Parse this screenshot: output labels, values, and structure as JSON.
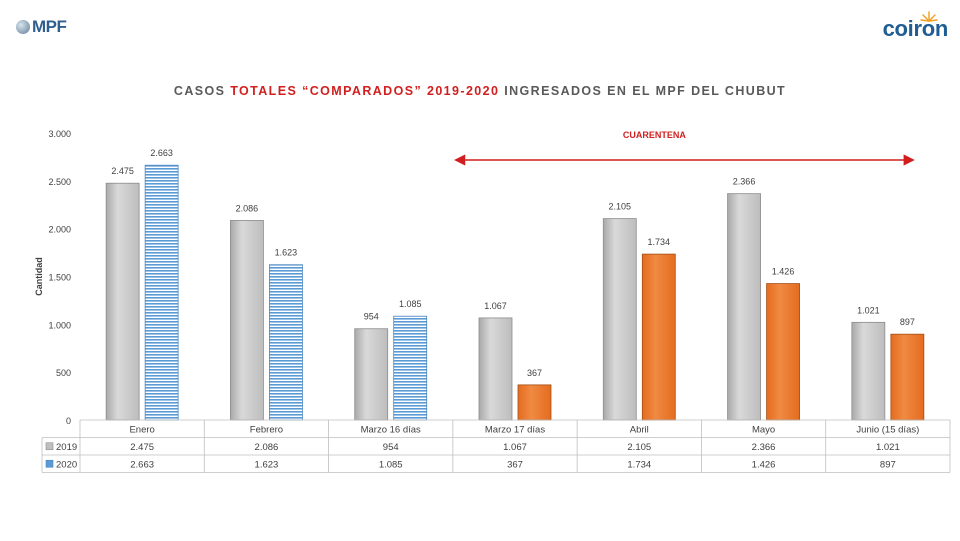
{
  "header": {
    "left_logo": "MPF",
    "right_logo": "coiron"
  },
  "title": {
    "part1": "CASOS ",
    "part2_red": "TOTALES “COMPARADOS” 2019-2020",
    "part3": " INGRESADOS EN EL MPF DEL CHUBUT"
  },
  "annotation": {
    "label": "CUARENTENA",
    "color": "#d11f1f"
  },
  "chart_data": {
    "type": "bar",
    "title": "CASOS TOTALES “COMPARADOS” 2019-2020 INGRESADOS EN EL MPF DEL CHUBUT",
    "ylabel": "Cantidad",
    "xlabel": "",
    "ylim": [
      0,
      3000
    ],
    "yticks": [
      0,
      500,
      1000,
      1500,
      2000,
      2500,
      3000
    ],
    "ytick_labels": [
      "0",
      "500",
      "1.000",
      "1.500",
      "2.000",
      "2.500",
      "3.000"
    ],
    "categories": [
      "Enero",
      "Febrero",
      "Marzo 16 días",
      "Marzo 17 días",
      "Abril",
      "Mayo",
      "Junio (15 días)"
    ],
    "series": [
      {
        "name": "2019",
        "values": [
          2475,
          2086,
          954,
          1067,
          2105,
          2366,
          1021
        ],
        "labels": [
          "2.475",
          "2.086",
          "954",
          "1.067",
          "2.105",
          "2.366",
          "1.021"
        ],
        "color": "#bfbfbf"
      },
      {
        "name": "2020",
        "values": [
          2663,
          1623,
          1085,
          367,
          1734,
          1426,
          897
        ],
        "labels": [
          "2.663",
          "1.623",
          "1.085",
          "367",
          "1.734",
          "1.426",
          "897"
        ],
        "color": "#5b9bd5",
        "quarantine_color": "#ed7d31"
      }
    ],
    "quarantine_start_index": 3,
    "grid": false,
    "legend": "data table below chart"
  }
}
